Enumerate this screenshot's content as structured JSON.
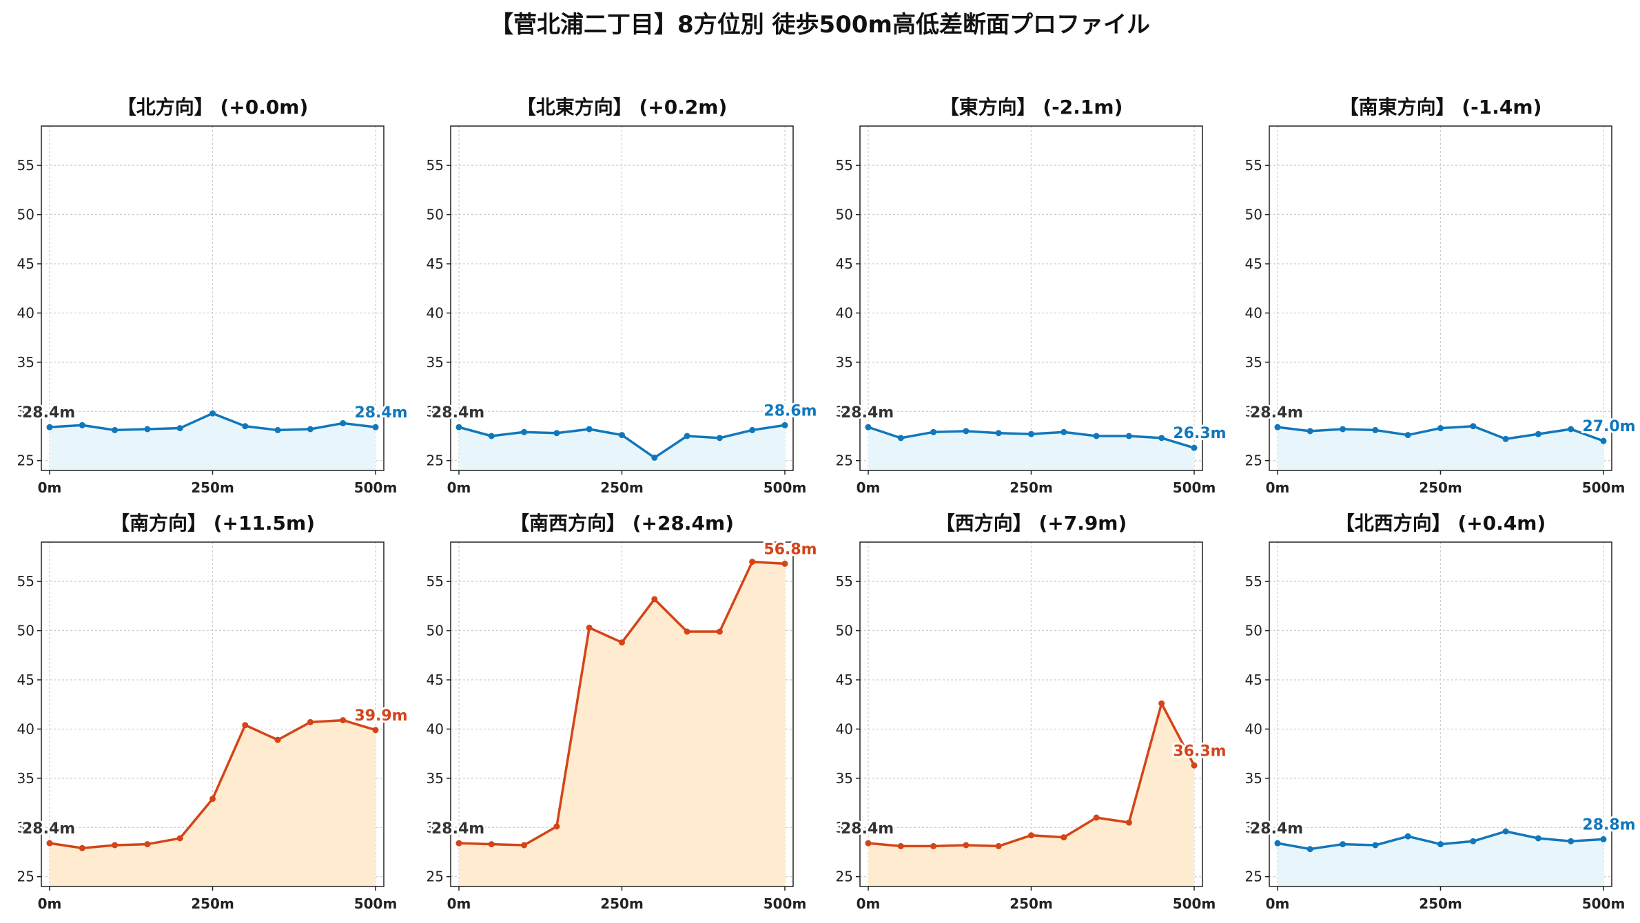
{
  "title": "【菅北浦二丁目】8方位別 徒歩500m高低差断面プロファイル",
  "colors": {
    "flat_line": "#1177bb",
    "flat_fill": "#e8f6fc",
    "up_line": "#d44418",
    "up_fill": "#ffecd0"
  },
  "chart_data": [
    {
      "type": "area",
      "title": "【北方向】 (+0.0m)",
      "trend": "flat",
      "x": [
        0,
        50,
        100,
        150,
        200,
        250,
        300,
        350,
        400,
        450,
        500
      ],
      "values": [
        28.4,
        28.6,
        28.1,
        28.2,
        28.3,
        29.8,
        28.5,
        28.1,
        28.2,
        28.8,
        28.4
      ],
      "start_label": "28.4m",
      "end_label": "28.4m",
      "xticks": [
        "0m",
        "250m",
        "500m"
      ],
      "yticks": [
        25,
        30,
        35,
        40,
        45,
        50,
        55
      ],
      "ylim": [
        24,
        59
      ],
      "grid": true
    },
    {
      "type": "area",
      "title": "【北東方向】 (+0.2m)",
      "trend": "flat",
      "x": [
        0,
        50,
        100,
        150,
        200,
        250,
        300,
        350,
        400,
        450,
        500
      ],
      "values": [
        28.4,
        27.5,
        27.9,
        27.8,
        28.2,
        27.6,
        25.3,
        27.5,
        27.3,
        28.1,
        28.6
      ],
      "start_label": "28.4m",
      "end_label": "28.6m",
      "xticks": [
        "0m",
        "250m",
        "500m"
      ],
      "yticks": [
        25,
        30,
        35,
        40,
        45,
        50,
        55
      ],
      "ylim": [
        24,
        59
      ],
      "grid": true
    },
    {
      "type": "area",
      "title": "【東方向】 (-2.1m)",
      "trend": "flat",
      "x": [
        0,
        50,
        100,
        150,
        200,
        250,
        300,
        350,
        400,
        450,
        500
      ],
      "values": [
        28.4,
        27.3,
        27.9,
        28.0,
        27.8,
        27.7,
        27.9,
        27.5,
        27.5,
        27.3,
        26.3
      ],
      "start_label": "28.4m",
      "end_label": "26.3m",
      "xticks": [
        "0m",
        "250m",
        "500m"
      ],
      "yticks": [
        25,
        30,
        35,
        40,
        45,
        50,
        55
      ],
      "ylim": [
        24,
        59
      ],
      "grid": true
    },
    {
      "type": "area",
      "title": "【南東方向】 (-1.4m)",
      "trend": "flat",
      "x": [
        0,
        50,
        100,
        150,
        200,
        250,
        300,
        350,
        400,
        450,
        500
      ],
      "values": [
        28.4,
        28.0,
        28.2,
        28.1,
        27.6,
        28.3,
        28.5,
        27.2,
        27.7,
        28.2,
        27.0
      ],
      "start_label": "28.4m",
      "end_label": "27.0m",
      "xticks": [
        "0m",
        "250m",
        "500m"
      ],
      "yticks": [
        25,
        30,
        35,
        40,
        45,
        50,
        55
      ],
      "ylim": [
        24,
        59
      ],
      "grid": true
    },
    {
      "type": "area",
      "title": "【南方向】 (+11.5m)",
      "trend": "up",
      "x": [
        0,
        50,
        100,
        150,
        200,
        250,
        300,
        350,
        400,
        450,
        500
      ],
      "values": [
        28.4,
        27.9,
        28.2,
        28.3,
        28.9,
        32.9,
        40.4,
        38.9,
        40.7,
        40.9,
        39.9
      ],
      "start_label": "28.4m",
      "end_label": "39.9m",
      "xticks": [
        "0m",
        "250m",
        "500m"
      ],
      "yticks": [
        25,
        30,
        35,
        40,
        45,
        50,
        55
      ],
      "ylim": [
        24,
        59
      ],
      "grid": true
    },
    {
      "type": "area",
      "title": "【南西方向】 (+28.4m)",
      "trend": "up",
      "x": [
        0,
        50,
        100,
        150,
        200,
        250,
        300,
        350,
        400,
        450,
        500
      ],
      "values": [
        28.4,
        28.3,
        28.2,
        30.1,
        50.3,
        48.8,
        53.2,
        49.9,
        49.9,
        57.0,
        56.8
      ],
      "start_label": "28.4m",
      "end_label": "56.8m",
      "xticks": [
        "0m",
        "250m",
        "500m"
      ],
      "yticks": [
        25,
        30,
        35,
        40,
        45,
        50,
        55
      ],
      "ylim": [
        24,
        59
      ],
      "grid": true
    },
    {
      "type": "area",
      "title": "【西方向】 (+7.9m)",
      "trend": "up",
      "x": [
        0,
        50,
        100,
        150,
        200,
        250,
        300,
        350,
        400,
        450,
        500
      ],
      "values": [
        28.4,
        28.1,
        28.1,
        28.2,
        28.1,
        29.2,
        29.0,
        31.0,
        30.5,
        42.6,
        36.3
      ],
      "start_label": "28.4m",
      "end_label": "36.3m",
      "xticks": [
        "0m",
        "250m",
        "500m"
      ],
      "yticks": [
        25,
        30,
        35,
        40,
        45,
        50,
        55
      ],
      "ylim": [
        24,
        59
      ],
      "grid": true
    },
    {
      "type": "area",
      "title": "【北西方向】 (+0.4m)",
      "trend": "flat",
      "x": [
        0,
        50,
        100,
        150,
        200,
        250,
        300,
        350,
        400,
        450,
        500
      ],
      "values": [
        28.4,
        27.8,
        28.3,
        28.2,
        29.1,
        28.3,
        28.6,
        29.6,
        28.9,
        28.6,
        28.8
      ],
      "start_label": "28.4m",
      "end_label": "28.8m",
      "xticks": [
        "0m",
        "250m",
        "500m"
      ],
      "yticks": [
        25,
        30,
        35,
        40,
        45,
        50,
        55
      ],
      "ylim": [
        24,
        59
      ],
      "grid": true
    }
  ]
}
